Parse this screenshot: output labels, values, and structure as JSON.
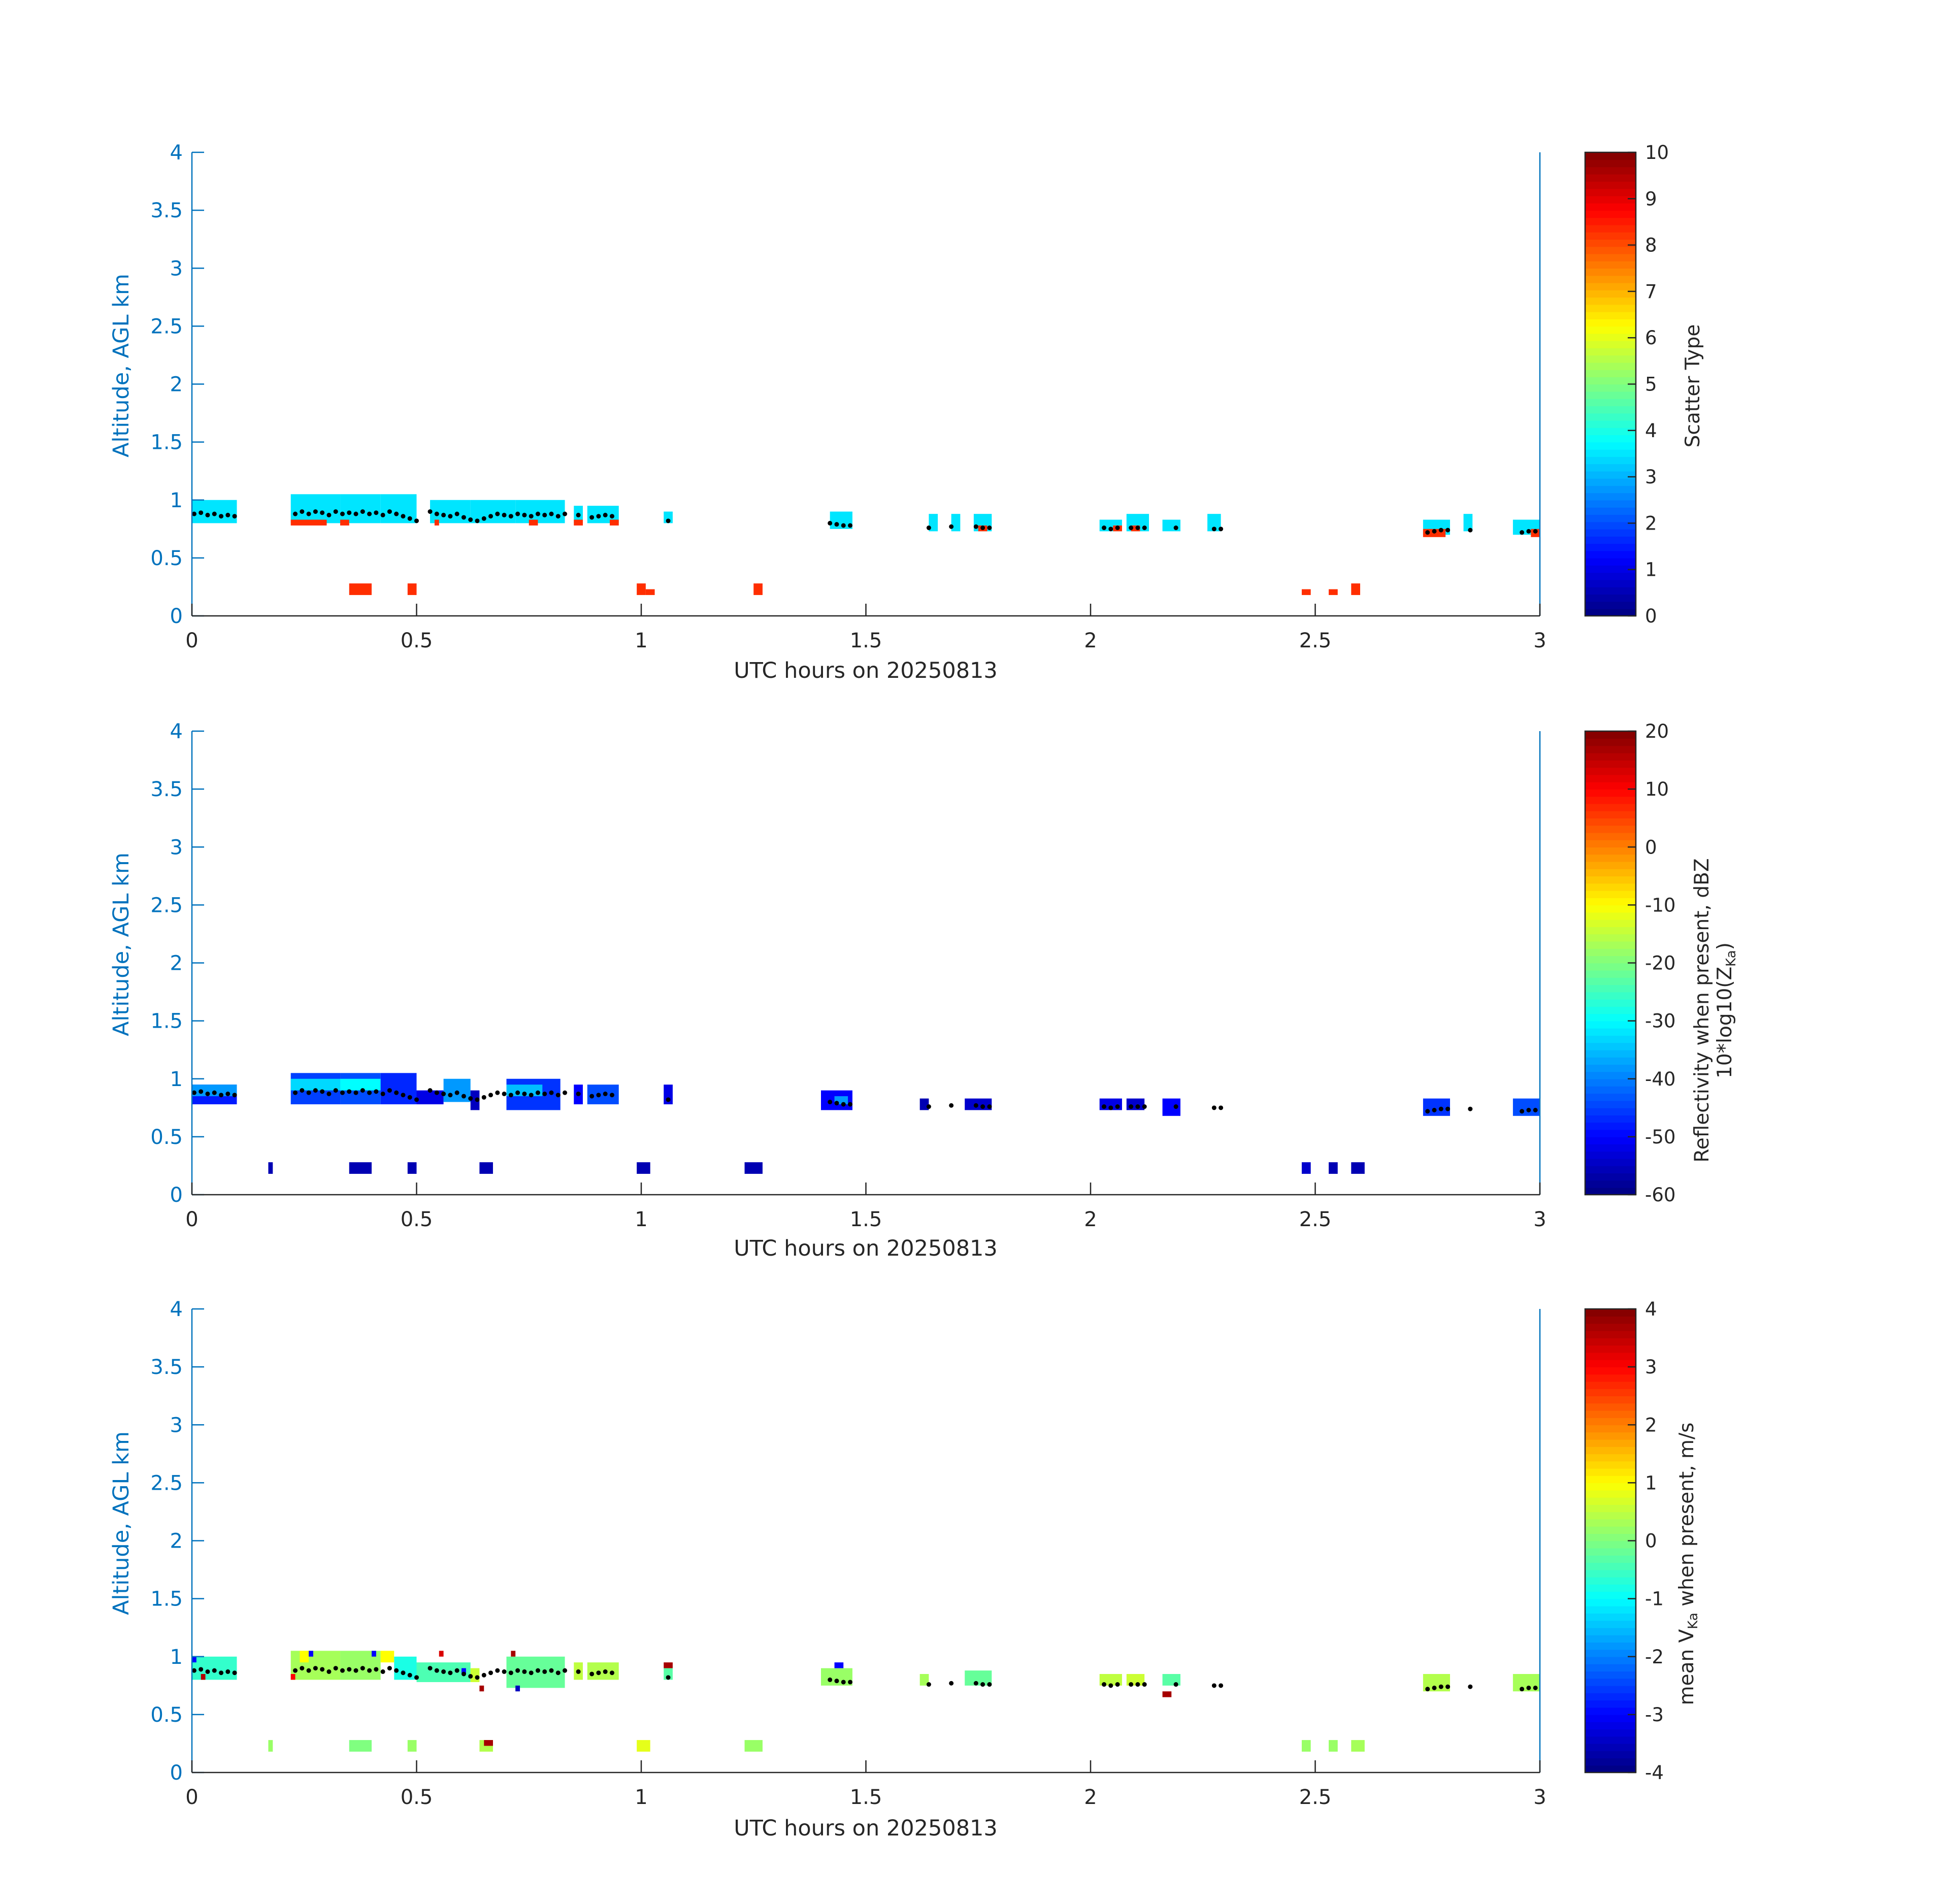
{
  "colors": {
    "axis_blue": "#0072BD",
    "text": "#262626",
    "dot": "#000000"
  },
  "chart_data": [
    {
      "type": "heatmap",
      "title": "",
      "xlabel": "UTC hours on 20250813",
      "ylabel": "Altitude, AGL km",
      "xlim": [
        0,
        3
      ],
      "ylim": [
        0,
        4
      ],
      "x_ticks": [
        "0",
        "0.5",
        "1",
        "1.5",
        "2",
        "2.5",
        "3"
      ],
      "y_ticks": [
        "0",
        "0.5",
        "1",
        "1.5",
        "2",
        "2.5",
        "3",
        "3.5",
        "4"
      ],
      "colorbar": {
        "label": "Scatter Type",
        "label2": "",
        "clim": [
          0,
          10
        ],
        "ticks": [
          "10",
          "9",
          "8",
          "7",
          "6",
          "5",
          "4",
          "3",
          "2",
          "1",
          "0"
        ]
      },
      "cells": [
        [
          0.0,
          0.1,
          0.8,
          1.0,
          3.5
        ],
        [
          0.22,
          0.33,
          0.8,
          1.05,
          3.5
        ],
        [
          0.33,
          0.42,
          0.8,
          1.05,
          3.5
        ],
        [
          0.42,
          0.5,
          0.8,
          1.05,
          3.5
        ],
        [
          0.53,
          0.62,
          0.8,
          1.0,
          3.5
        ],
        [
          0.62,
          0.72,
          0.8,
          1.0,
          3.5
        ],
        [
          0.72,
          0.83,
          0.8,
          1.0,
          3.5
        ],
        [
          0.85,
          0.87,
          0.8,
          0.95,
          3.5
        ],
        [
          0.88,
          0.95,
          0.8,
          0.95,
          3.5
        ],
        [
          1.05,
          1.07,
          0.8,
          0.9,
          3.5
        ],
        [
          1.42,
          1.47,
          0.75,
          0.9,
          3.5
        ],
        [
          1.64,
          1.66,
          0.73,
          0.88,
          3.5
        ],
        [
          1.69,
          1.71,
          0.73,
          0.88,
          3.5
        ],
        [
          1.74,
          1.78,
          0.73,
          0.88,
          3.5
        ],
        [
          2.02,
          2.07,
          0.73,
          0.83,
          3.5
        ],
        [
          2.08,
          2.13,
          0.73,
          0.88,
          3.5
        ],
        [
          2.16,
          2.2,
          0.73,
          0.83,
          3.5
        ],
        [
          2.26,
          2.29,
          0.73,
          0.88,
          3.5
        ],
        [
          2.74,
          2.8,
          0.7,
          0.83,
          3.5
        ],
        [
          2.83,
          2.85,
          0.73,
          0.88,
          3.5
        ],
        [
          2.94,
          3.0,
          0.7,
          0.83,
          3.5
        ],
        [
          0.22,
          0.3,
          0.78,
          0.83,
          8.3
        ],
        [
          0.33,
          0.35,
          0.78,
          0.83,
          8.3
        ],
        [
          0.54,
          0.55,
          0.78,
          0.83,
          8.3
        ],
        [
          0.75,
          0.77,
          0.78,
          0.83,
          8.3
        ],
        [
          0.85,
          0.87,
          0.78,
          0.83,
          8.3
        ],
        [
          0.93,
          0.95,
          0.78,
          0.83,
          8.3
        ],
        [
          1.75,
          1.77,
          0.73,
          0.78,
          8.3
        ],
        [
          2.05,
          2.07,
          0.73,
          0.78,
          8.3
        ],
        [
          2.09,
          2.11,
          0.73,
          0.78,
          8.3
        ],
        [
          2.74,
          2.79,
          0.68,
          0.75,
          8.3
        ],
        [
          2.98,
          3.0,
          0.68,
          0.75,
          8.3
        ],
        [
          0.35,
          0.4,
          0.18,
          0.28,
          8.3
        ],
        [
          0.48,
          0.5,
          0.18,
          0.28,
          8.3
        ],
        [
          0.99,
          1.01,
          0.18,
          0.28,
          8.3
        ],
        [
          1.01,
          1.03,
          0.18,
          0.23,
          8.3
        ],
        [
          1.25,
          1.27,
          0.18,
          0.28,
          8.3
        ],
        [
          2.47,
          2.49,
          0.18,
          0.23,
          8.3
        ],
        [
          2.53,
          2.55,
          0.18,
          0.23,
          8.3
        ],
        [
          2.58,
          2.6,
          0.18,
          0.28,
          8.3
        ]
      ]
    },
    {
      "type": "heatmap",
      "title": "",
      "xlabel": "UTC hours on 20250813",
      "ylabel": "Altitude, AGL km",
      "xlim": [
        0,
        3
      ],
      "ylim": [
        0,
        4
      ],
      "x_ticks": [
        "0",
        "0.5",
        "1",
        "1.5",
        "2",
        "2.5",
        "3"
      ],
      "y_ticks": [
        "0",
        "0.5",
        "1",
        "1.5",
        "2",
        "2.5",
        "3",
        "3.5",
        "4"
      ],
      "colorbar": {
        "label": "Reflectivity when present, dBZ",
        "label2": "10*log10(Z",
        "label2_sub": "Ka",
        "label2_end": ")",
        "clim": [
          -60,
          20
        ],
        "ticks": [
          "20",
          "10",
          "0",
          "-10",
          "-20",
          "-30",
          "-40",
          "-50",
          "-60"
        ]
      },
      "cells": [
        [
          0.0,
          0.1,
          0.78,
          0.95,
          -48
        ],
        [
          0.0,
          0.1,
          0.85,
          0.95,
          -38
        ],
        [
          0.22,
          0.33,
          0.78,
          1.05,
          -45
        ],
        [
          0.22,
          0.33,
          0.9,
          1.0,
          -33
        ],
        [
          0.33,
          0.42,
          0.78,
          1.05,
          -44
        ],
        [
          0.33,
          0.42,
          0.9,
          1.0,
          -30
        ],
        [
          0.42,
          0.5,
          0.78,
          1.05,
          -47
        ],
        [
          0.5,
          0.56,
          0.78,
          0.9,
          -52
        ],
        [
          0.56,
          0.62,
          0.8,
          1.0,
          -38
        ],
        [
          0.62,
          0.64,
          0.73,
          0.9,
          -55
        ],
        [
          0.7,
          0.82,
          0.73,
          1.0,
          -46
        ],
        [
          0.7,
          0.78,
          0.85,
          0.95,
          -35
        ],
        [
          0.85,
          0.87,
          0.78,
          0.95,
          -50
        ],
        [
          0.88,
          0.95,
          0.78,
          0.95,
          -44
        ],
        [
          1.05,
          1.07,
          0.78,
          0.95,
          -52
        ],
        [
          1.4,
          1.47,
          0.73,
          0.9,
          -50
        ],
        [
          1.43,
          1.46,
          0.78,
          0.85,
          -38
        ],
        [
          1.62,
          1.64,
          0.73,
          0.83,
          -56
        ],
        [
          1.72,
          1.78,
          0.73,
          0.83,
          -54
        ],
        [
          2.02,
          2.07,
          0.73,
          0.83,
          -52
        ],
        [
          2.08,
          2.12,
          0.73,
          0.83,
          -54
        ],
        [
          2.16,
          2.2,
          0.68,
          0.83,
          -50
        ],
        [
          2.74,
          2.8,
          0.68,
          0.83,
          -46
        ],
        [
          2.94,
          3.0,
          0.68,
          0.83,
          -44
        ],
        [
          0.17,
          0.18,
          0.18,
          0.28,
          -56
        ],
        [
          0.35,
          0.4,
          0.18,
          0.28,
          -56
        ],
        [
          0.48,
          0.5,
          0.18,
          0.28,
          -56
        ],
        [
          0.64,
          0.67,
          0.18,
          0.28,
          -56
        ],
        [
          0.99,
          1.02,
          0.18,
          0.28,
          -56
        ],
        [
          1.23,
          1.27,
          0.18,
          0.28,
          -56
        ],
        [
          2.47,
          2.49,
          0.18,
          0.28,
          -54
        ],
        [
          2.53,
          2.55,
          0.18,
          0.28,
          -56
        ],
        [
          2.58,
          2.61,
          0.18,
          0.28,
          -56
        ]
      ]
    },
    {
      "type": "heatmap",
      "title": "",
      "xlabel": "UTC hours on 20250813",
      "ylabel": "Altitude, AGL km",
      "xlim": [
        0,
        3
      ],
      "ylim": [
        0,
        4
      ],
      "x_ticks": [
        "0",
        "0.5",
        "1",
        "1.5",
        "2",
        "2.5",
        "3"
      ],
      "y_ticks": [
        "0",
        "0.5",
        "1",
        "1.5",
        "2",
        "2.5",
        "3",
        "3.5",
        "4"
      ],
      "colorbar": {
        "label": "mean V",
        "label_sub": "Ka",
        "label_end": " when present, m/s",
        "label2": "",
        "clim": [
          -4,
          4
        ],
        "ticks": [
          "4",
          "3",
          "2",
          "1",
          "0",
          "-1",
          "-2",
          "-3",
          "-4"
        ]
      },
      "cells": [
        [
          0.0,
          0.1,
          0.8,
          1.0,
          -0.6
        ],
        [
          0.22,
          0.33,
          0.8,
          1.05,
          0.3
        ],
        [
          0.24,
          0.26,
          0.95,
          1.05,
          1.0
        ],
        [
          0.33,
          0.42,
          0.8,
          1.05,
          0.2
        ],
        [
          0.42,
          0.45,
          0.95,
          1.05,
          1.0
        ],
        [
          0.45,
          0.5,
          0.8,
          1.0,
          -0.8
        ],
        [
          0.5,
          0.62,
          0.78,
          0.95,
          -0.4
        ],
        [
          0.62,
          0.64,
          0.78,
          0.9,
          0.6
        ],
        [
          0.7,
          0.83,
          0.73,
          1.0,
          -0.2
        ],
        [
          0.85,
          0.87,
          0.8,
          0.95,
          0.5
        ],
        [
          0.88,
          0.95,
          0.8,
          0.95,
          0.4
        ],
        [
          1.05,
          1.07,
          0.8,
          0.9,
          -0.3
        ],
        [
          1.4,
          1.47,
          0.75,
          0.9,
          0.2
        ],
        [
          1.62,
          1.64,
          0.75,
          0.85,
          0.3
        ],
        [
          1.72,
          1.78,
          0.75,
          0.88,
          -0.2
        ],
        [
          2.02,
          2.07,
          0.75,
          0.85,
          0.5
        ],
        [
          2.08,
          2.12,
          0.75,
          0.85,
          0.6
        ],
        [
          2.16,
          2.2,
          0.75,
          0.85,
          -0.3
        ],
        [
          2.74,
          2.8,
          0.7,
          0.85,
          0.4
        ],
        [
          2.94,
          3.0,
          0.7,
          0.85,
          0.3
        ],
        [
          0.0,
          0.01,
          0.95,
          1.0,
          -3.0
        ],
        [
          0.02,
          0.03,
          0.8,
          0.85,
          3.6
        ],
        [
          0.22,
          0.23,
          0.8,
          0.85,
          3.0
        ],
        [
          0.26,
          0.27,
          1.0,
          1.05,
          -3.0
        ],
        [
          0.4,
          0.41,
          1.0,
          1.05,
          -3.0
        ],
        [
          0.55,
          0.56,
          1.0,
          1.05,
          3.3
        ],
        [
          0.6,
          0.61,
          0.85,
          0.9,
          -3.0
        ],
        [
          0.64,
          0.65,
          0.7,
          0.75,
          3.7
        ],
        [
          0.71,
          0.72,
          1.0,
          1.05,
          3.7
        ],
        [
          0.72,
          0.73,
          0.7,
          0.75,
          -3.5
        ],
        [
          1.05,
          1.07,
          0.9,
          0.95,
          3.7
        ],
        [
          1.43,
          1.45,
          0.9,
          0.95,
          -3.0
        ],
        [
          2.16,
          2.18,
          0.65,
          0.7,
          3.7
        ],
        [
          0.17,
          0.18,
          0.18,
          0.28,
          0.2
        ],
        [
          0.35,
          0.4,
          0.18,
          0.28,
          0.0
        ],
        [
          0.48,
          0.5,
          0.18,
          0.28,
          0.2
        ],
        [
          0.64,
          0.67,
          0.18,
          0.28,
          0.4
        ],
        [
          0.65,
          0.67,
          0.23,
          0.28,
          3.7
        ],
        [
          0.99,
          1.02,
          0.18,
          0.28,
          0.8
        ],
        [
          1.23,
          1.27,
          0.18,
          0.28,
          0.2
        ],
        [
          2.47,
          2.49,
          0.18,
          0.28,
          0.2
        ],
        [
          2.53,
          2.55,
          0.18,
          0.28,
          0.2
        ],
        [
          2.58,
          2.61,
          0.18,
          0.28,
          0.3
        ]
      ]
    }
  ],
  "cloud_base": {
    "x": [
      0.005,
      0.02,
      0.035,
      0.05,
      0.065,
      0.08,
      0.095,
      0.23,
      0.245,
      0.26,
      0.275,
      0.29,
      0.305,
      0.32,
      0.335,
      0.35,
      0.365,
      0.38,
      0.395,
      0.41,
      0.425,
      0.44,
      0.455,
      0.47,
      0.485,
      0.5,
      0.53,
      0.545,
      0.56,
      0.575,
      0.59,
      0.605,
      0.62,
      0.635,
      0.65,
      0.665,
      0.68,
      0.695,
      0.71,
      0.725,
      0.74,
      0.755,
      0.77,
      0.785,
      0.8,
      0.815,
      0.83,
      0.86,
      0.89,
      0.905,
      0.92,
      0.935,
      1.06,
      1.42,
      1.435,
      1.45,
      1.465,
      1.64,
      1.69,
      1.745,
      1.76,
      1.775,
      2.03,
      2.045,
      2.06,
      2.09,
      2.105,
      2.12,
      2.19,
      2.275,
      2.29,
      2.75,
      2.765,
      2.78,
      2.795,
      2.845,
      2.96,
      2.975,
      2.99
    ],
    "y": [
      0.88,
      0.89,
      0.87,
      0.88,
      0.86,
      0.87,
      0.86,
      0.88,
      0.9,
      0.88,
      0.9,
      0.89,
      0.87,
      0.9,
      0.88,
      0.89,
      0.88,
      0.9,
      0.88,
      0.89,
      0.87,
      0.9,
      0.88,
      0.86,
      0.84,
      0.82,
      0.9,
      0.88,
      0.87,
      0.86,
      0.88,
      0.85,
      0.83,
      0.82,
      0.84,
      0.86,
      0.88,
      0.87,
      0.86,
      0.88,
      0.87,
      0.86,
      0.88,
      0.87,
      0.88,
      0.86,
      0.88,
      0.87,
      0.85,
      0.86,
      0.87,
      0.86,
      0.82,
      0.8,
      0.79,
      0.78,
      0.78,
      0.76,
      0.77,
      0.77,
      0.76,
      0.76,
      0.76,
      0.75,
      0.76,
      0.76,
      0.76,
      0.76,
      0.76,
      0.75,
      0.75,
      0.72,
      0.73,
      0.74,
      0.74,
      0.74,
      0.72,
      0.73,
      0.73
    ]
  }
}
